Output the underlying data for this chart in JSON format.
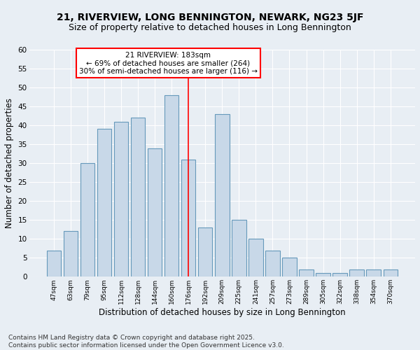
{
  "title": "21, RIVERVIEW, LONG BENNINGTON, NEWARK, NG23 5JF",
  "subtitle": "Size of property relative to detached houses in Long Bennington",
  "xlabel": "Distribution of detached houses by size in Long Bennington",
  "ylabel": "Number of detached properties",
  "categories": [
    "47sqm",
    "63sqm",
    "79sqm",
    "95sqm",
    "112sqm",
    "128sqm",
    "144sqm",
    "160sqm",
    "176sqm",
    "192sqm",
    "209sqm",
    "225sqm",
    "241sqm",
    "257sqm",
    "273sqm",
    "289sqm",
    "305sqm",
    "322sqm",
    "338sqm",
    "354sqm",
    "370sqm"
  ],
  "values": [
    7,
    12,
    30,
    39,
    41,
    42,
    34,
    48,
    31,
    13,
    43,
    15,
    10,
    7,
    5,
    2,
    1,
    1,
    2,
    2,
    2
  ],
  "bar_color": "#c8d8e8",
  "bar_edge_color": "#6699bb",
  "background_color": "#e8eef4",
  "grid_color": "#ffffff",
  "vline_x_index": 8,
  "vline_color": "red",
  "annotation_text": "21 RIVERVIEW: 183sqm\n← 69% of detached houses are smaller (264)\n30% of semi-detached houses are larger (116) →",
  "annotation_box_color": "white",
  "annotation_box_edge_color": "red",
  "footer_text": "Contains HM Land Registry data © Crown copyright and database right 2025.\nContains public sector information licensed under the Open Government Licence v3.0.",
  "ylim": [
    0,
    60
  ],
  "yticks": [
    0,
    5,
    10,
    15,
    20,
    25,
    30,
    35,
    40,
    45,
    50,
    55,
    60
  ],
  "title_fontsize": 10,
  "subtitle_fontsize": 9,
  "annotation_fontsize": 7.5,
  "footer_fontsize": 6.5
}
